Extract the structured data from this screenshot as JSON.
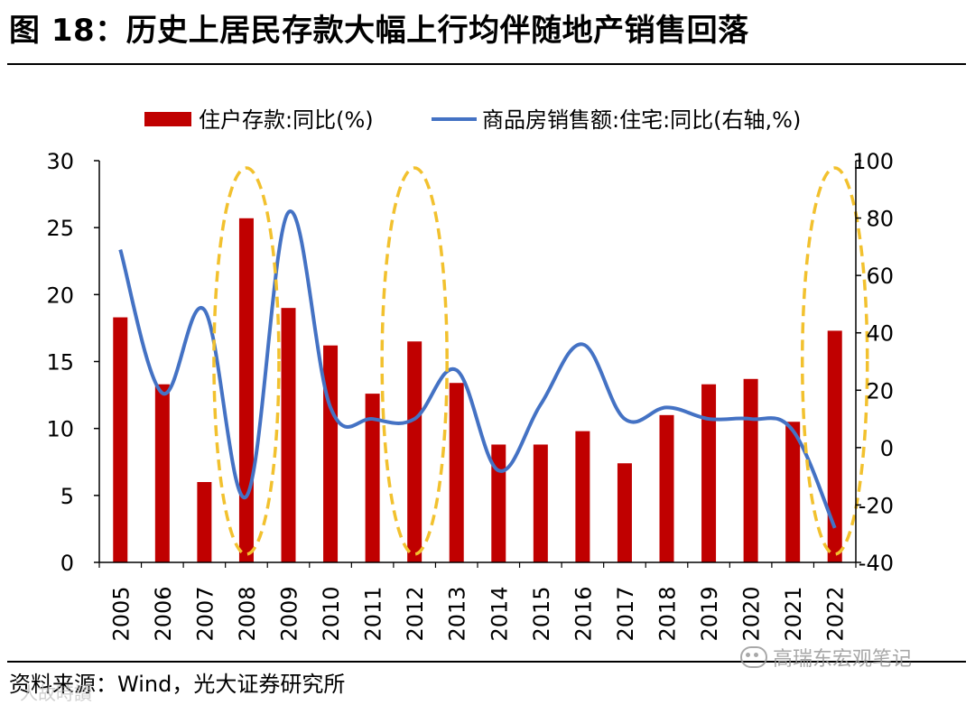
{
  "header": {
    "title": "图 18：历史上居民存款大幅上行均伴随地产销售回落"
  },
  "footer": {
    "source": "资料来源：Wind，光大证券研究所"
  },
  "watermarks": {
    "wechat": "高瑞东宏观笔记",
    "corner": "人故時讀"
  },
  "colors": {
    "bar": "#C00000",
    "line": "#4472C4",
    "highlight": "#F2C12E"
  },
  "chart_data": {
    "type": "bar+line",
    "categories": [
      "2005",
      "2006",
      "2007",
      "2008",
      "2009",
      "2010",
      "2011",
      "2012",
      "2013",
      "2014",
      "2015",
      "2016",
      "2017",
      "2018",
      "2019",
      "2020",
      "2021",
      "2022"
    ],
    "series": [
      {
        "name": "住户存款:同比(%)",
        "type": "bar",
        "axis": "left",
        "values": [
          18.3,
          13.3,
          6.0,
          25.7,
          19.0,
          16.2,
          12.6,
          16.5,
          13.4,
          8.8,
          8.8,
          9.8,
          7.4,
          11.0,
          13.3,
          13.7,
          10.5,
          17.3
        ]
      },
      {
        "name": "商品房销售额:住宅:同比(右轴,%)",
        "type": "line",
        "axis": "right",
        "values": [
          69,
          19,
          48,
          -17,
          82,
          14,
          10,
          10,
          27,
          -8,
          15,
          36,
          10,
          14,
          10,
          10,
          6,
          -28
        ]
      }
    ],
    "left_axis": {
      "ylim": [
        0,
        30
      ],
      "ticks": [
        "0",
        "5",
        "10",
        "15",
        "20",
        "25",
        "30"
      ]
    },
    "right_axis": {
      "ylim": [
        -40,
        100
      ],
      "ticks": [
        "-40",
        "-20",
        "0",
        "20",
        "40",
        "60",
        "80",
        "100"
      ]
    },
    "highlights": [
      "2008",
      "2012",
      "2022"
    ],
    "legend_position": "top"
  }
}
